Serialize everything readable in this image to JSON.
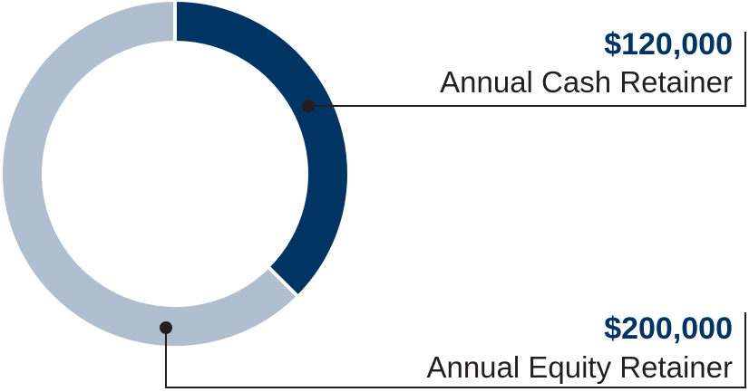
{
  "chart_data": {
    "type": "donut",
    "categories": [
      "Annual Cash Retainer",
      "Annual Equity Retainer"
    ],
    "values": [
      120000,
      200000
    ],
    "value_labels": [
      "$120,000",
      "$200,000"
    ],
    "colors": [
      "#003462",
      "#b0bfcf"
    ]
  }
}
